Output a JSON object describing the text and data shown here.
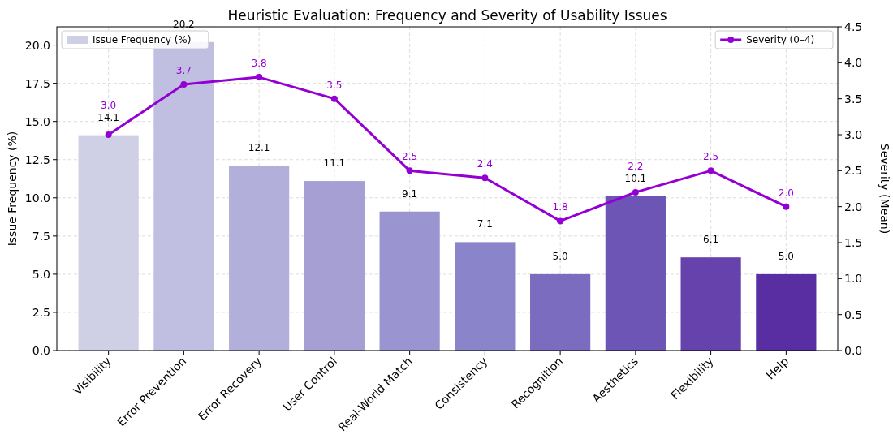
{
  "chart_data": {
    "type": "bar",
    "title": "Heuristic Evaluation: Frequency and Severity of Usability Issues",
    "ylabel": "Issue Frequency (%)",
    "y2label": "Severity (Mean)",
    "categories": [
      "Visibility",
      "Error Prevention",
      "Error Recovery",
      "User Control",
      "Real-World Match",
      "Consistency",
      "Recognition",
      "Aesthetics",
      "Flexibility",
      "Help"
    ],
    "series": [
      {
        "name": "Issue Frequency (%)",
        "values": [
          14.1,
          20.2,
          12.1,
          11.1,
          9.1,
          7.1,
          5.0,
          10.1,
          6.1,
          5.0
        ],
        "value_labels": [
          "14.1",
          "20.2",
          "12.1",
          "11.1",
          "9.1",
          "7.1",
          "5.0",
          "10.1",
          "6.1",
          "5.0"
        ],
        "colors": [
          "#cfcfe6",
          "#c0bfe1",
          "#b2afda",
          "#a69fd4",
          "#9a95d0",
          "#8a84cb",
          "#7b6cc0",
          "#6d55b6",
          "#6642ac",
          "#5a2ea3"
        ],
        "color": "#cfcfe6"
      },
      {
        "name": "Severity (0–4)",
        "type": "line",
        "axis": "y2",
        "color": "#9400d3",
        "values": [
          3.0,
          3.7,
          3.8,
          3.5,
          2.5,
          2.4,
          1.8,
          2.2,
          2.5,
          2.0
        ],
        "value_labels": [
          "3.0",
          "3.7",
          "3.8",
          "3.5",
          "2.5",
          "2.4",
          "1.8",
          "2.2",
          "2.5",
          "2.0"
        ]
      }
    ],
    "ylim": [
      0,
      21.2
    ],
    "yticks": [
      {
        "value": 0,
        "label": "0.0"
      },
      {
        "value": 2.5,
        "label": "2.5"
      },
      {
        "value": 5,
        "label": "5.0"
      },
      {
        "value": 7.5,
        "label": "7.5"
      },
      {
        "value": 10,
        "label": "10.0"
      },
      {
        "value": 12.5,
        "label": "12.5"
      },
      {
        "value": 15,
        "label": "15.0"
      },
      {
        "value": 17.5,
        "label": "17.5"
      },
      {
        "value": 20,
        "label": "20.0"
      }
    ],
    "y2lim": [
      0,
      4.5
    ],
    "y2ticks": [
      {
        "value": 0,
        "label": "0.0"
      },
      {
        "value": 0.5,
        "label": "0.5"
      },
      {
        "value": 1,
        "label": "1.0"
      },
      {
        "value": 1.5,
        "label": "1.5"
      },
      {
        "value": 2,
        "label": "2.0"
      },
      {
        "value": 2.5,
        "label": "2.5"
      },
      {
        "value": 3,
        "label": "3.0"
      },
      {
        "value": 3.5,
        "label": "3.5"
      },
      {
        "value": 4,
        "label": "4.0"
      },
      {
        "value": 4.5,
        "label": "4.5"
      }
    ],
    "grid": true,
    "legend": "top",
    "marker": "circle",
    "line_style": "solid"
  }
}
